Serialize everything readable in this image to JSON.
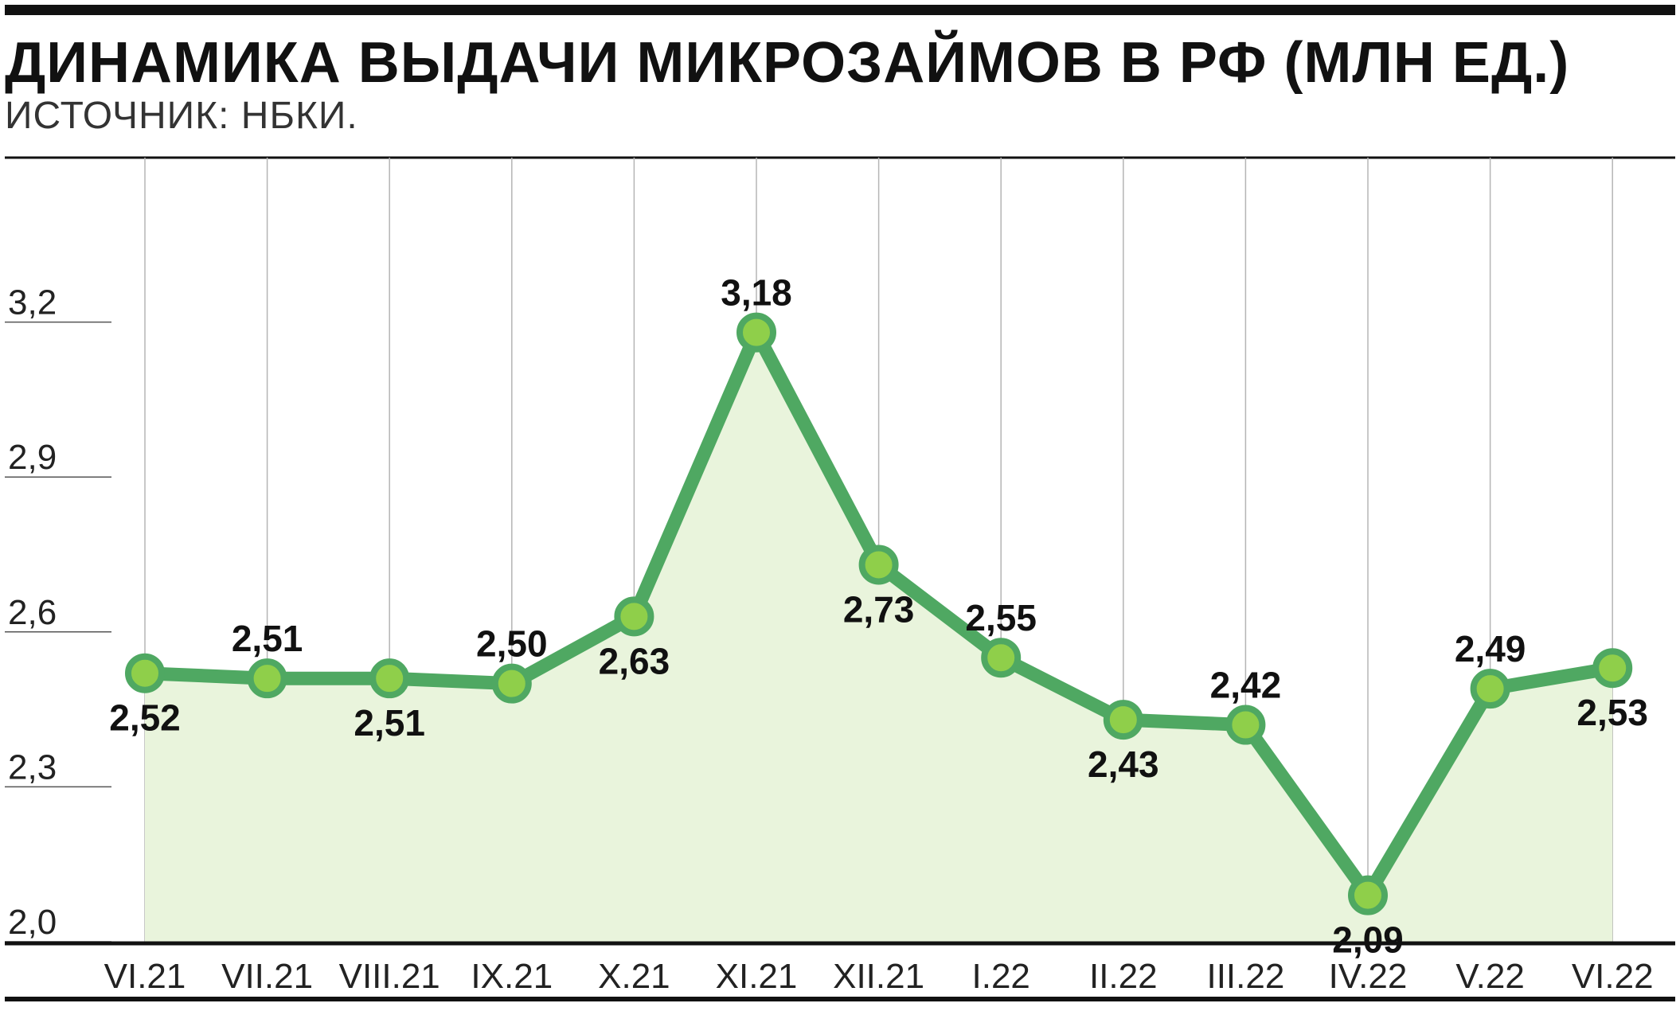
{
  "title": "ДИНАМИКА ВЫДАЧИ МИКРОЗАЙМОВ В РФ (МЛН ЕД.)",
  "subtitle": "ИСТОЧНИК: НБКИ.",
  "chart_data": {
    "type": "line",
    "categories": [
      "VI.21",
      "VII.21",
      "VIII.21",
      "IX.21",
      "X.21",
      "XI.21",
      "XII.21",
      "I.22",
      "II.22",
      "III.22",
      "IV.22",
      "V.22",
      "VI.22"
    ],
    "values": [
      2.52,
      2.51,
      2.51,
      2.5,
      2.63,
      3.18,
      2.73,
      2.55,
      2.43,
      2.42,
      2.09,
      2.49,
      2.53
    ],
    "data_labels": [
      "2,52",
      "2,51",
      "2,51",
      "2,50",
      "2,63",
      "3,18",
      "2,73",
      "2,55",
      "2,43",
      "2,42",
      "2,09",
      "2,49",
      "2,53"
    ],
    "label_position": [
      "below",
      "above",
      "below",
      "above",
      "below",
      "above",
      "below",
      "above",
      "below",
      "above",
      "below",
      "above",
      "below"
    ],
    "y_ticks": [
      2.0,
      2.3,
      2.6,
      2.9,
      3.2
    ],
    "y_tick_labels": [
      "2,0",
      "2,3",
      "2,6",
      "2,9",
      "3,2"
    ],
    "ylim": [
      2.0,
      3.5
    ],
    "area_fill": true,
    "grid": "vertical",
    "colors": {
      "line": "#4fa862",
      "marker": "#8fcf4a",
      "area": "#e9f4dc",
      "gridline": "#b5b5b5",
      "text": "#111111"
    }
  }
}
